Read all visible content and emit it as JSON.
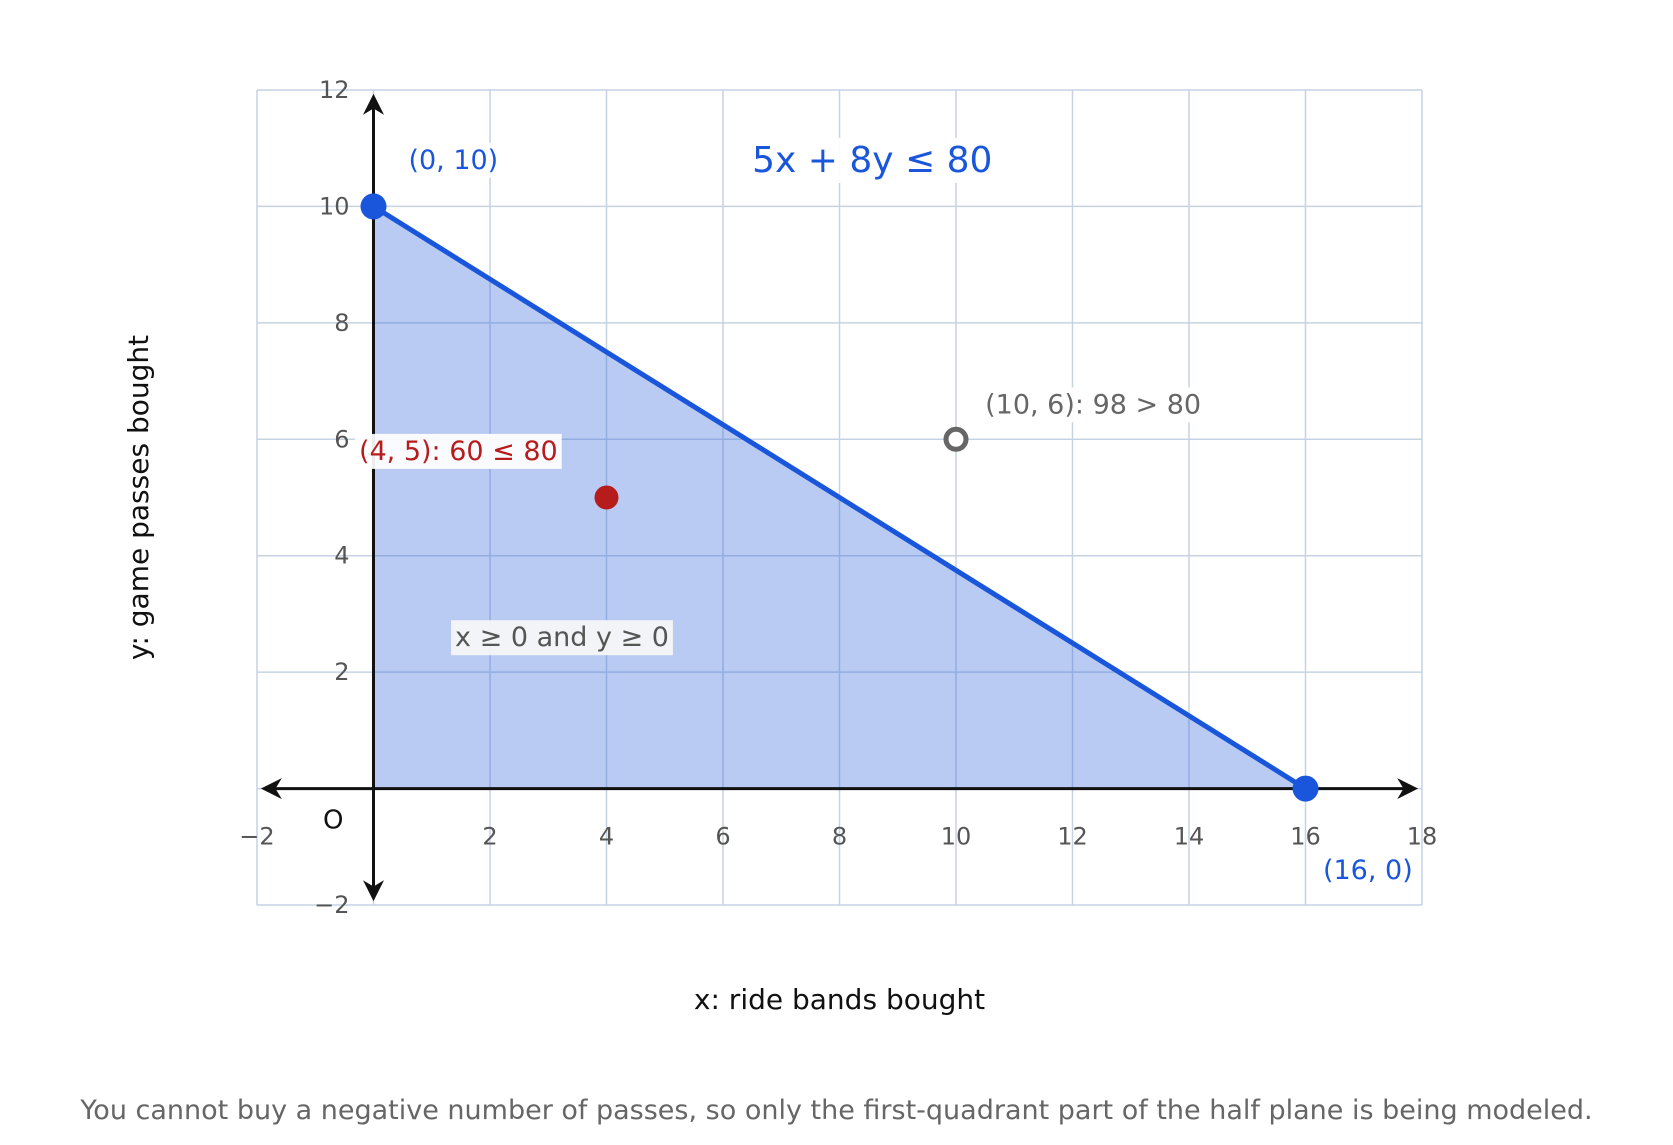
{
  "chart_data": {
    "type": "line",
    "title": "",
    "xlabel": "x: ride bands bought",
    "ylabel": "y: game passes bought",
    "xlim": [
      -2,
      18
    ],
    "ylim": [
      -2,
      12
    ],
    "x_ticks": [
      -2,
      2,
      4,
      6,
      8,
      10,
      12,
      14,
      16,
      18
    ],
    "y_ticks": [
      -2,
      2,
      4,
      6,
      8,
      10,
      12
    ],
    "x_tick_labels": [
      "−2",
      "2",
      "4",
      "6",
      "8",
      "10",
      "12",
      "14",
      "16",
      "18"
    ],
    "y_tick_labels": [
      "−2",
      "2",
      "4",
      "6",
      "8",
      "10",
      "12"
    ],
    "grid": true,
    "origin_label": "O",
    "inequality": "5x + 8y ≤ 80",
    "boundary_line": {
      "from": [
        0,
        10
      ],
      "to": [
        16,
        0
      ]
    },
    "feasible_region": [
      [
        0,
        0
      ],
      [
        0,
        10
      ],
      [
        16,
        0
      ]
    ],
    "region_label": "x ≥ 0 and y ≥ 0",
    "intercepts": [
      {
        "x": 0,
        "y": 10,
        "label": "(0, 10)"
      },
      {
        "x": 16,
        "y": 0,
        "label": "(16, 0)"
      }
    ],
    "test_points": [
      {
        "x": 4,
        "y": 5,
        "label": "(4, 5):  60 ≤ 80",
        "satisfies": true
      },
      {
        "x": 10,
        "y": 6,
        "label": "(10, 6):  98 > 80",
        "satisfies": false
      }
    ],
    "colors": {
      "line": "#1a56db",
      "fill": "#b9cbf3",
      "grid": "#c6d3e3",
      "solution_point": "#b71c1c",
      "non_solution_point": "#666666",
      "axis": "#111111"
    }
  },
  "caption": "You cannot buy a negative number of passes, so only the first-quadrant part of the half plane is being modeled."
}
